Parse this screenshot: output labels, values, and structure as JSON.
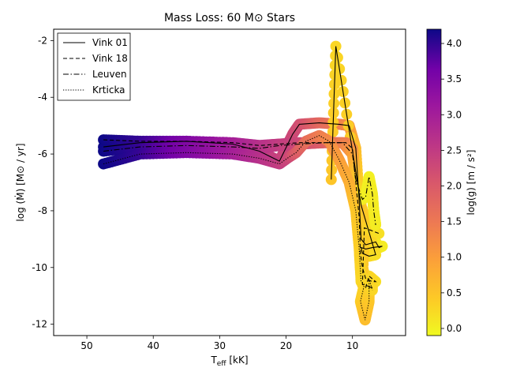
{
  "chart_data": {
    "type": "line",
    "title": "Mass Loss: 60 M⊙ Stars",
    "xlabel": "T_eff [kK]",
    "xlabel_main": "T",
    "xlabel_sub": "eff",
    "xlabel_unit": " [kK]",
    "ylabel": "log (Ṁ) [M⊙ / yr]",
    "xlim": [
      55,
      2
    ],
    "ylim": [
      -12.4,
      -1.6
    ],
    "x_inverted": true,
    "xticks": [
      50,
      40,
      30,
      20,
      10
    ],
    "yticks": [
      -2,
      -4,
      -6,
      -8,
      -10,
      -12
    ],
    "xtick_labels": [
      "50",
      "40",
      "30",
      "20",
      "10"
    ],
    "ytick_labels": [
      "-2",
      "-4",
      "-6",
      "-8",
      "-10",
      "-12"
    ],
    "legend_position": "top-left",
    "colorbar": {
      "label": "log(g) [m / s²]",
      "colormap": "plasma_r",
      "range": [
        -0.1,
        4.2
      ],
      "ticks": [
        0.0,
        0.5,
        1.0,
        1.5,
        2.0,
        2.5,
        3.0,
        3.5,
        4.0
      ],
      "tick_labels": [
        "0.0",
        "0.5",
        "1.0",
        "1.5",
        "2.0",
        "2.5",
        "3.0",
        "3.5",
        "4.0"
      ]
    },
    "series": [
      {
        "name": "Vink 01",
        "dash": "solid",
        "points": [
          [
            47.5,
            -5.75
          ],
          [
            42,
            -5.6
          ],
          [
            35,
            -5.55
          ],
          [
            28,
            -5.65
          ],
          [
            24,
            -5.9
          ],
          [
            21,
            -6.25
          ],
          [
            19,
            -5.3
          ],
          [
            18,
            -4.95
          ],
          [
            15,
            -4.9
          ],
          [
            12,
            -4.95
          ],
          [
            10.5,
            -5.0
          ],
          [
            9.5,
            -5.8
          ],
          [
            9,
            -7.6
          ],
          [
            8.7,
            -9.0
          ],
          [
            8,
            -9.2
          ],
          [
            6.5,
            -9.1
          ],
          [
            6,
            -9.3
          ],
          [
            5.5,
            -9.25
          ],
          [
            7,
            -9.3
          ],
          [
            8,
            -9.35
          ],
          [
            8.7,
            -9.3
          ],
          [
            8.5,
            -9.5
          ],
          [
            7.5,
            -9.6
          ],
          [
            6.5,
            -9.55
          ],
          [
            8.7,
            -7.8
          ],
          [
            12.5,
            -2.2
          ],
          [
            13.2,
            -6.9
          ]
        ],
        "logg": [
          4.2,
          4.0,
          3.5,
          3.0,
          2.6,
          2.4,
          2.3,
          2.2,
          1.8,
          1.5,
          1.2,
          0.6,
          0.3,
          0.2,
          0.15,
          0.1,
          0.05,
          0.05,
          0.1,
          0.15,
          0.2,
          0.5,
          0.3,
          0.2,
          0.5,
          0.3,
          0.5
        ]
      },
      {
        "name": "Vink 18",
        "dash": "dashed",
        "points": [
          [
            47.5,
            -5.5
          ],
          [
            42,
            -5.55
          ],
          [
            35,
            -5.55
          ],
          [
            28,
            -5.6
          ],
          [
            24,
            -5.7
          ],
          [
            21,
            -5.65
          ],
          [
            18,
            -5.6
          ],
          [
            14,
            -5.6
          ],
          [
            11,
            -5.6
          ],
          [
            10,
            -5.8
          ],
          [
            9.5,
            -7.0
          ],
          [
            9,
            -8.2
          ],
          [
            8.8,
            -9.5
          ],
          [
            8.5,
            -10.0
          ],
          [
            8,
            -10.4
          ],
          [
            7,
            -10.5
          ],
          [
            6.5,
            -10.5
          ],
          [
            7.5,
            -10.3
          ],
          [
            8,
            -10.7
          ],
          [
            7,
            -10.7
          ],
          [
            8.5,
            -10.6
          ],
          [
            8.2,
            -8.6
          ],
          [
            6,
            -8.8
          ]
        ],
        "logg": [
          4.2,
          4.0,
          3.5,
          3.0,
          2.7,
          2.5,
          2.3,
          1.9,
          1.5,
          1.2,
          0.8,
          0.5,
          0.4,
          0.3,
          0.3,
          0.2,
          0.2,
          0.3,
          0.4,
          0.3,
          0.5,
          0.4,
          0.2
        ]
      },
      {
        "name": "Leuven",
        "dash": "dashdot",
        "points": [
          [
            47.5,
            -5.9
          ],
          [
            42,
            -5.75
          ],
          [
            35,
            -5.7
          ],
          [
            28,
            -5.75
          ],
          [
            24,
            -5.8
          ],
          [
            21,
            -5.7
          ],
          [
            18,
            -5.65
          ],
          [
            14,
            -5.6
          ],
          [
            11.5,
            -5.6
          ],
          [
            10,
            -6.0
          ],
          [
            9.5,
            -6.9
          ],
          [
            8.5,
            -7.6
          ],
          [
            8,
            -7.5
          ],
          [
            7.5,
            -6.8
          ],
          [
            7,
            -7.4
          ],
          [
            6.8,
            -8.0
          ],
          [
            6.5,
            -8.5
          ]
        ],
        "logg": [
          4.2,
          4.0,
          3.5,
          3.0,
          2.7,
          2.5,
          2.3,
          1.9,
          1.5,
          1.0,
          0.5,
          0.1,
          0.0,
          0.0,
          0.05,
          0.05,
          0.05
        ]
      },
      {
        "name": "Krticka",
        "dash": "dotted",
        "points": [
          [
            47.5,
            -6.35
          ],
          [
            42,
            -6.0
          ],
          [
            35,
            -5.95
          ],
          [
            28,
            -6.0
          ],
          [
            24,
            -6.15
          ],
          [
            21,
            -6.35
          ],
          [
            19.5,
            -6.1
          ],
          [
            18.5,
            -5.95
          ],
          [
            17,
            -5.55
          ],
          [
            15,
            -5.35
          ],
          [
            13.5,
            -5.55
          ],
          [
            12,
            -6.2
          ],
          [
            10.5,
            -7.0
          ],
          [
            9.5,
            -8.0
          ],
          [
            9,
            -9.3
          ],
          [
            8.7,
            -10.5
          ],
          [
            8.2,
            -10.6
          ],
          [
            8.8,
            -11.2
          ],
          [
            8.1,
            -11.85
          ],
          [
            7.5,
            -11.2
          ],
          [
            7.5,
            -10.4
          ],
          [
            7,
            -10.8
          ]
        ],
        "logg": [
          4.2,
          4.0,
          3.5,
          3.0,
          2.7,
          2.5,
          2.3,
          2.0,
          1.7,
          1.5,
          1.3,
          1.0,
          0.8,
          0.5,
          0.4,
          0.3,
          0.3,
          0.4,
          0.6,
          0.5,
          0.3,
          0.3
        ]
      }
    ]
  }
}
